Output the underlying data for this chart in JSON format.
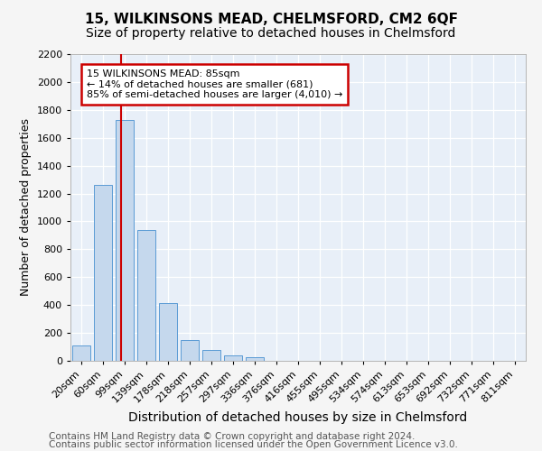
{
  "title": "15, WILKINSONS MEAD, CHELMSFORD, CM2 6QF",
  "subtitle": "Size of property relative to detached houses in Chelmsford",
  "xlabel": "Distribution of detached houses by size in Chelmsford",
  "ylabel": "Number of detached properties",
  "bar_values": [
    110,
    1260,
    1730,
    940,
    415,
    150,
    75,
    40,
    25,
    0,
    0,
    0,
    0,
    0,
    0,
    0,
    0,
    0,
    0,
    0,
    0
  ],
  "categories": [
    "20sqm",
    "60sqm",
    "99sqm",
    "139sqm",
    "178sqm",
    "218sqm",
    "257sqm",
    "297sqm",
    "336sqm",
    "376sqm",
    "416sqm",
    "455sqm",
    "495sqm",
    "534sqm",
    "574sqm",
    "613sqm",
    "653sqm",
    "692sqm",
    "732sqm",
    "771sqm",
    "811sqm"
  ],
  "bar_color": "#c5d8ed",
  "bar_edge_color": "#5b9bd5",
  "ylim": [
    0,
    2200
  ],
  "yticks": [
    0,
    200,
    400,
    600,
    800,
    1000,
    1200,
    1400,
    1600,
    1800,
    2000,
    2200
  ],
  "property_line_x": 1.85,
  "annotation_title": "15 WILKINSONS MEAD: 85sqm",
  "annotation_line1": "← 14% of detached houses are smaller (681)",
  "annotation_line2": "85% of semi-detached houses are larger (4,010) →",
  "annotation_box_color": "#ffffff",
  "annotation_box_edge": "#cc0000",
  "red_line_color": "#cc0000",
  "footer1": "Contains HM Land Registry data © Crown copyright and database right 2024.",
  "footer2": "Contains public sector information licensed under the Open Government Licence v3.0.",
  "fig_background": "#f5f5f5",
  "axes_background": "#e8eff8",
  "grid_color": "#ffffff",
  "title_fontsize": 11,
  "subtitle_fontsize": 10,
  "xlabel_fontsize": 10,
  "ylabel_fontsize": 9,
  "tick_fontsize": 8,
  "annotation_fontsize": 8,
  "footer_fontsize": 7.5
}
